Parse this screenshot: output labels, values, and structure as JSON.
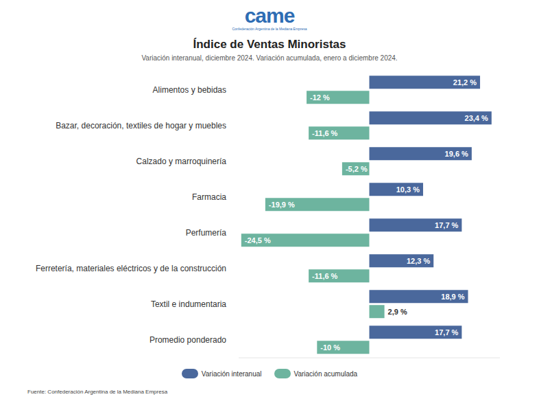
{
  "chart_data": {
    "type": "bar",
    "orientation": "horizontal",
    "logo": {
      "text": "came",
      "caption": "Confederación Argentina de la Mediana Empresa"
    },
    "title": "Índice de Ventas Minoristas",
    "subtitle": "Variación interanual, diciembre 2024. Variación acumulada, enero a diciembre 2024.",
    "source": "Fuente: Confederación Argentina de la Mediana Empresa",
    "categories": [
      "Alimentos y bebidas",
      "Bazar, decoración, textiles de hogar y muebles",
      "Calzado y marroquinería",
      "Farmacia",
      "Perfumería",
      "Ferretería, materiales eléctricos y de la construcción",
      "Textil e indumentaria",
      "Promedio ponderado"
    ],
    "series": [
      {
        "name": "Variación interanual",
        "color": "#4a689c",
        "values": [
          21.2,
          23.4,
          19.6,
          10.3,
          17.7,
          12.3,
          18.9,
          17.7
        ],
        "value_labels": [
          "21,2 %",
          "23,4 %",
          "19,6 %",
          "10,3 %",
          "17,7 %",
          "12,3 %",
          "18,9 %",
          "17,7 %"
        ]
      },
      {
        "name": "Variación acumulada",
        "color": "#6db49f",
        "values": [
          -12,
          -11.6,
          -5.2,
          -19.9,
          -24.5,
          -11.6,
          2.9,
          -10
        ],
        "value_labels": [
          "-12 %",
          "-11,6 %",
          "-5,2 %",
          "-19,9 %",
          "-24,5 %",
          "-11,6 %",
          "2,9 %",
          "-10 %"
        ]
      }
    ],
    "xlim": [
      -25,
      25
    ],
    "xticks": [],
    "tick_labels": false,
    "data_labels": true,
    "legend": "bottom",
    "grid": false
  }
}
